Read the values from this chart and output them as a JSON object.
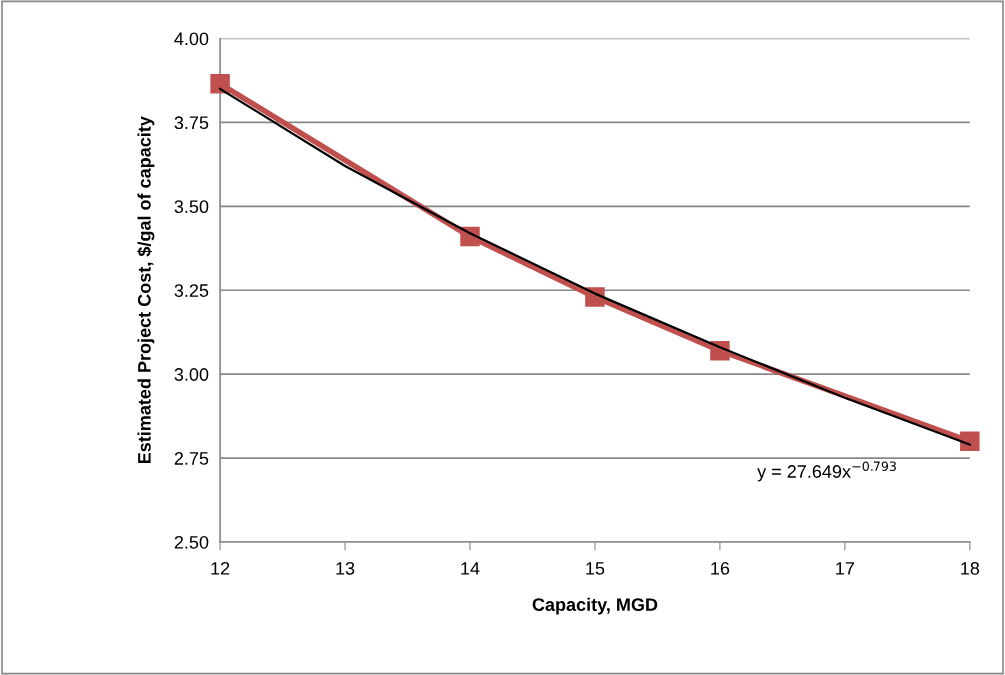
{
  "chart_data": {
    "type": "line",
    "xlabel": "Capacity, MGD",
    "ylabel": "Estimated Project Cost, $/gal of capacity",
    "series": [
      {
        "color": "#c0504d",
        "marker": "square",
        "x": [
          12,
          14,
          15,
          16,
          18
        ],
        "values": [
          3.865,
          3.41,
          3.23,
          3.07,
          2.8
        ]
      },
      {
        "color": "#000000",
        "marker": "none",
        "x": [
          12,
          13,
          14,
          15,
          16,
          17,
          18
        ],
        "values": [
          3.85,
          3.62,
          3.42,
          3.24,
          3.08,
          2.93,
          2.79
        ]
      }
    ],
    "annotations": [
      "y = 27.649x$^{−0.793}$"
    ],
    "xlim": [
      12,
      18
    ],
    "xticks": [
      12,
      13,
      14,
      15,
      16,
      17,
      18
    ],
    "ylim": [
      2.5,
      4.0
    ],
    "yticks": [
      {
        "value": 2.5,
        "label": "2.50"
      },
      {
        "value": 2.75,
        "label": "2.75"
      },
      {
        "value": 3.0,
        "label": "3.00"
      },
      {
        "value": 3.25,
        "label": "3.25"
      },
      {
        "value": 3.5,
        "label": "3.50"
      },
      {
        "value": 3.75,
        "label": "3.75"
      },
      {
        "value": 4.0,
        "label": "4.00"
      }
    ],
    "grid": "y",
    "legend": false
  }
}
